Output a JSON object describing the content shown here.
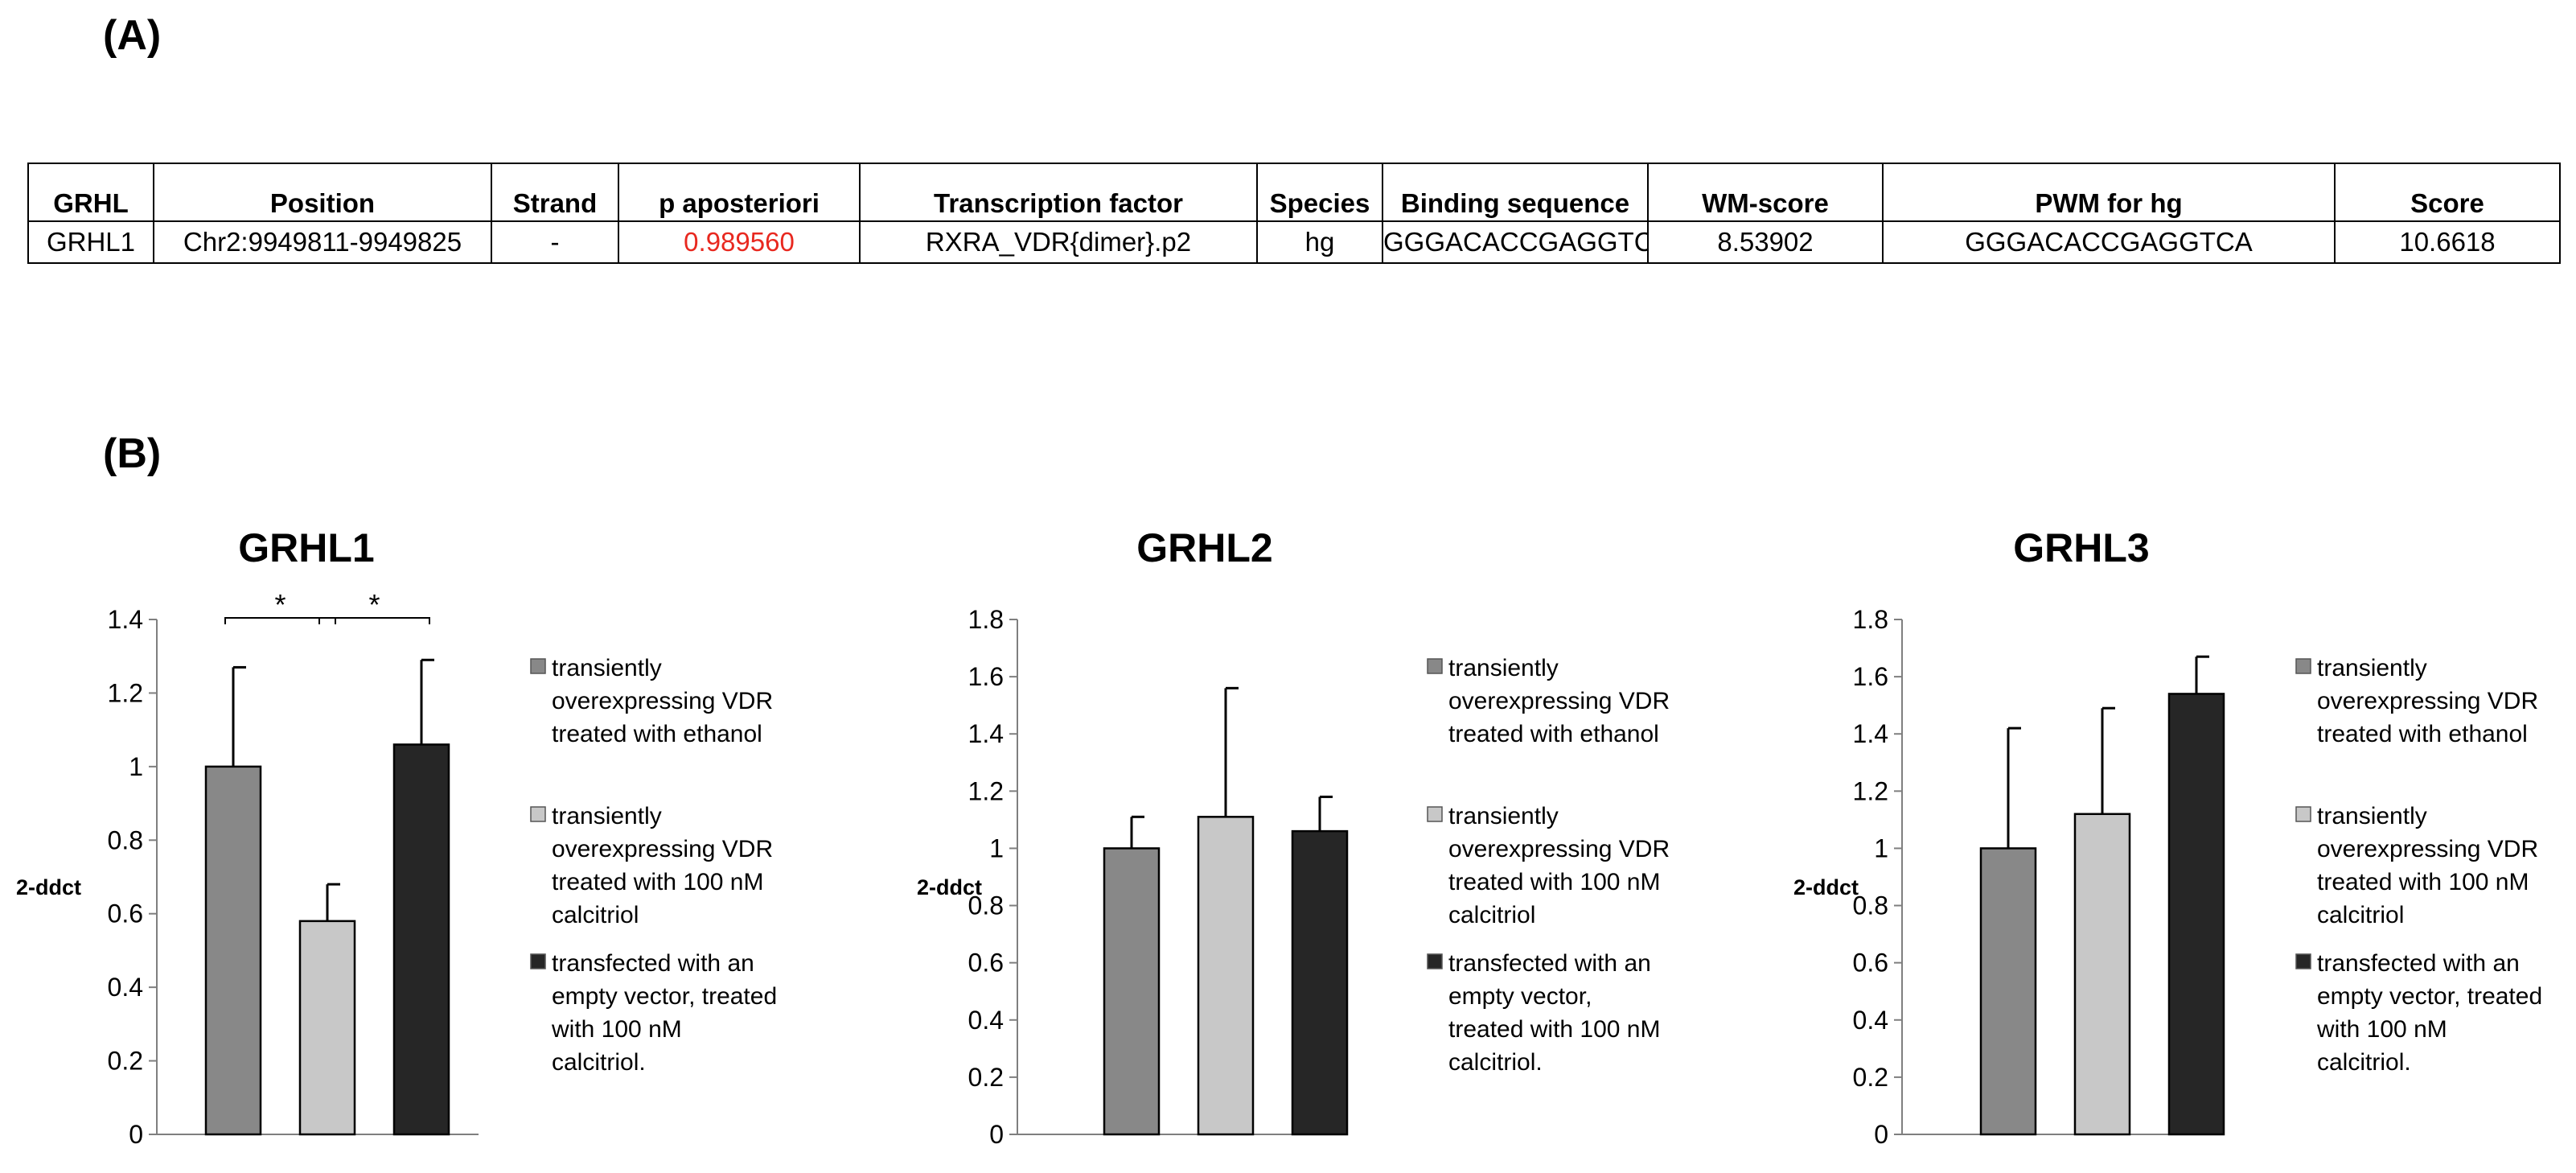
{
  "panels": {
    "a": "(A)",
    "b": "(B)"
  },
  "table": {
    "headers": [
      "GRHL",
      "Position",
      "Strand",
      "p aposteriori",
      "Transcription factor",
      "Species",
      "Binding sequence",
      "WM-score",
      "PWM for hg",
      "Score"
    ],
    "rows": [
      [
        "GRHL1",
        "Chr2:9949811-9949825",
        "-",
        "0.989560",
        "RXRA_VDR{dimer}.p2",
        "hg",
        "GGGACACCGAGGTCG",
        "8.53902",
        "GGGACACCGAGGTCA",
        "10.6618"
      ]
    ],
    "highlight_color": "#e8281f"
  },
  "chart_data": [
    {
      "type": "bar",
      "title": "GRHL1",
      "ylabel": "2-ddct",
      "xlabel": "",
      "ylim": [
        0,
        1.4
      ],
      "yticks": [
        "0",
        "0.2",
        "0.4",
        "0.6",
        "0.8",
        "1",
        "1.2",
        "1.4"
      ],
      "values": [
        1.0,
        0.58,
        1.06
      ],
      "errors": [
        0.27,
        0.1,
        0.23
      ],
      "significance": [
        {
          "from": 0,
          "to": 1,
          "label": "*"
        },
        {
          "from": 1,
          "to": 2,
          "label": "*"
        }
      ],
      "legend_lines": [
        [
          "transiently",
          "overexpressing VDR",
          "treated with ethanol"
        ],
        [
          "transiently",
          "overexpressing VDR",
          "treated with 100 nM",
          "calcitriol"
        ],
        [
          "transfected with an",
          "empty vector, treated",
          "with 100 nM",
          "calcitriol."
        ]
      ],
      "legend_position": "right",
      "grid": false
    },
    {
      "type": "bar",
      "title": "GRHL2",
      "ylabel": "2-ddct",
      "xlabel": "",
      "ylim": [
        0,
        1.8
      ],
      "yticks": [
        "0",
        "0.2",
        "0.4",
        "0.6",
        "0.8",
        "1",
        "1.2",
        "1.4",
        "1.6",
        "1.8"
      ],
      "values": [
        1.0,
        1.11,
        1.06
      ],
      "errors": [
        0.11,
        0.45,
        0.12
      ],
      "significance": [],
      "legend_lines": [
        [
          "transiently",
          "overexpressing VDR",
          "treated with ethanol"
        ],
        [
          "transiently",
          "overexpressing VDR",
          "treated with 100 nM",
          "calcitriol"
        ],
        [
          "transfected with an",
          "empty vector,",
          "treated with 100 nM",
          "calcitriol."
        ]
      ],
      "legend_position": "right",
      "grid": false
    },
    {
      "type": "bar",
      "title": "GRHL3",
      "ylabel": "2-ddct",
      "xlabel": "",
      "ylim": [
        0,
        1.8
      ],
      "yticks": [
        "0",
        "0.2",
        "0.4",
        "0.6",
        "0.8",
        "1",
        "1.2",
        "1.4",
        "1.6",
        "1.8"
      ],
      "values": [
        1.0,
        1.12,
        1.54
      ],
      "errors": [
        0.42,
        0.37,
        0.13
      ],
      "significance": [],
      "legend_lines": [
        [
          "transiently",
          "overexpressing VDR",
          "treated with ethanol"
        ],
        [
          "transiently",
          "overexpressing VDR",
          "treated with 100 nM",
          "calcitriol"
        ],
        [
          "transfected with an",
          "empty vector, treated",
          "with 100 nM",
          "calcitriol."
        ]
      ],
      "legend_position": "right",
      "grid": false
    }
  ],
  "colors": {
    "bar_1": "#888888",
    "bar_2": "#c8c8c8",
    "bar_3": "#262626",
    "axis": "#7f7f7f"
  }
}
